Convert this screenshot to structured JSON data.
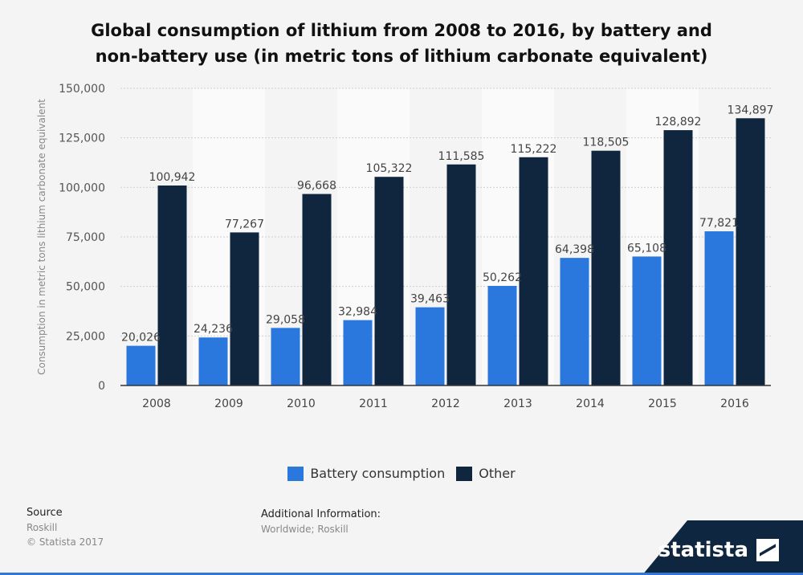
{
  "colors": {
    "battery": "#2a77dd",
    "other": "#10263f",
    "grid": "#cfcfcf",
    "axis": "#333333"
  },
  "chart_data": {
    "type": "bar",
    "title": [
      "Global consumption of lithium from 2008 to 2016, by battery and",
      "non-battery use (in metric tons of lithium carbonate equivalent)"
    ],
    "xlabel": "",
    "ylabel": "Consumption in metric tons lithium carbonate equivalent",
    "ylim": [
      0,
      150000
    ],
    "yticks": [
      0,
      25000,
      50000,
      75000,
      100000,
      125000,
      150000
    ],
    "ytick_labels": [
      "0",
      "25,000",
      "50,000",
      "75,000",
      "100,000",
      "125,000",
      "150,000"
    ],
    "categories": [
      "2008",
      "2009",
      "2010",
      "2011",
      "2012",
      "2013",
      "2014",
      "2015",
      "2016"
    ],
    "series": [
      {
        "name": "Battery consumption",
        "values": [
          20026,
          24236,
          29058,
          32984,
          39463,
          50262,
          64398,
          65108,
          77821
        ],
        "labels": [
          "20,026",
          "24,236",
          "29,058",
          "32,984",
          "39,463",
          "50,262",
          "64,398",
          "65,108",
          "77,821"
        ]
      },
      {
        "name": "Other",
        "values": [
          100942,
          77267,
          96668,
          105322,
          111585,
          115222,
          118505,
          128892,
          134897
        ],
        "labels": [
          "100,942",
          "77,267",
          "96,668",
          "105,322",
          "111,585",
          "115,222",
          "118,505",
          "128,892",
          "134,897"
        ]
      }
    ],
    "legend": "bottom-center",
    "grid": true
  },
  "legend": {
    "battery": "Battery consumption",
    "other": "Other"
  },
  "source": {
    "heading": "Source",
    "name": "Roskill",
    "copyright": "© Statista 2017"
  },
  "additional": {
    "heading": "Additional Information:",
    "text": "Worldwide; Roskill"
  },
  "brand": {
    "name": "statista"
  }
}
